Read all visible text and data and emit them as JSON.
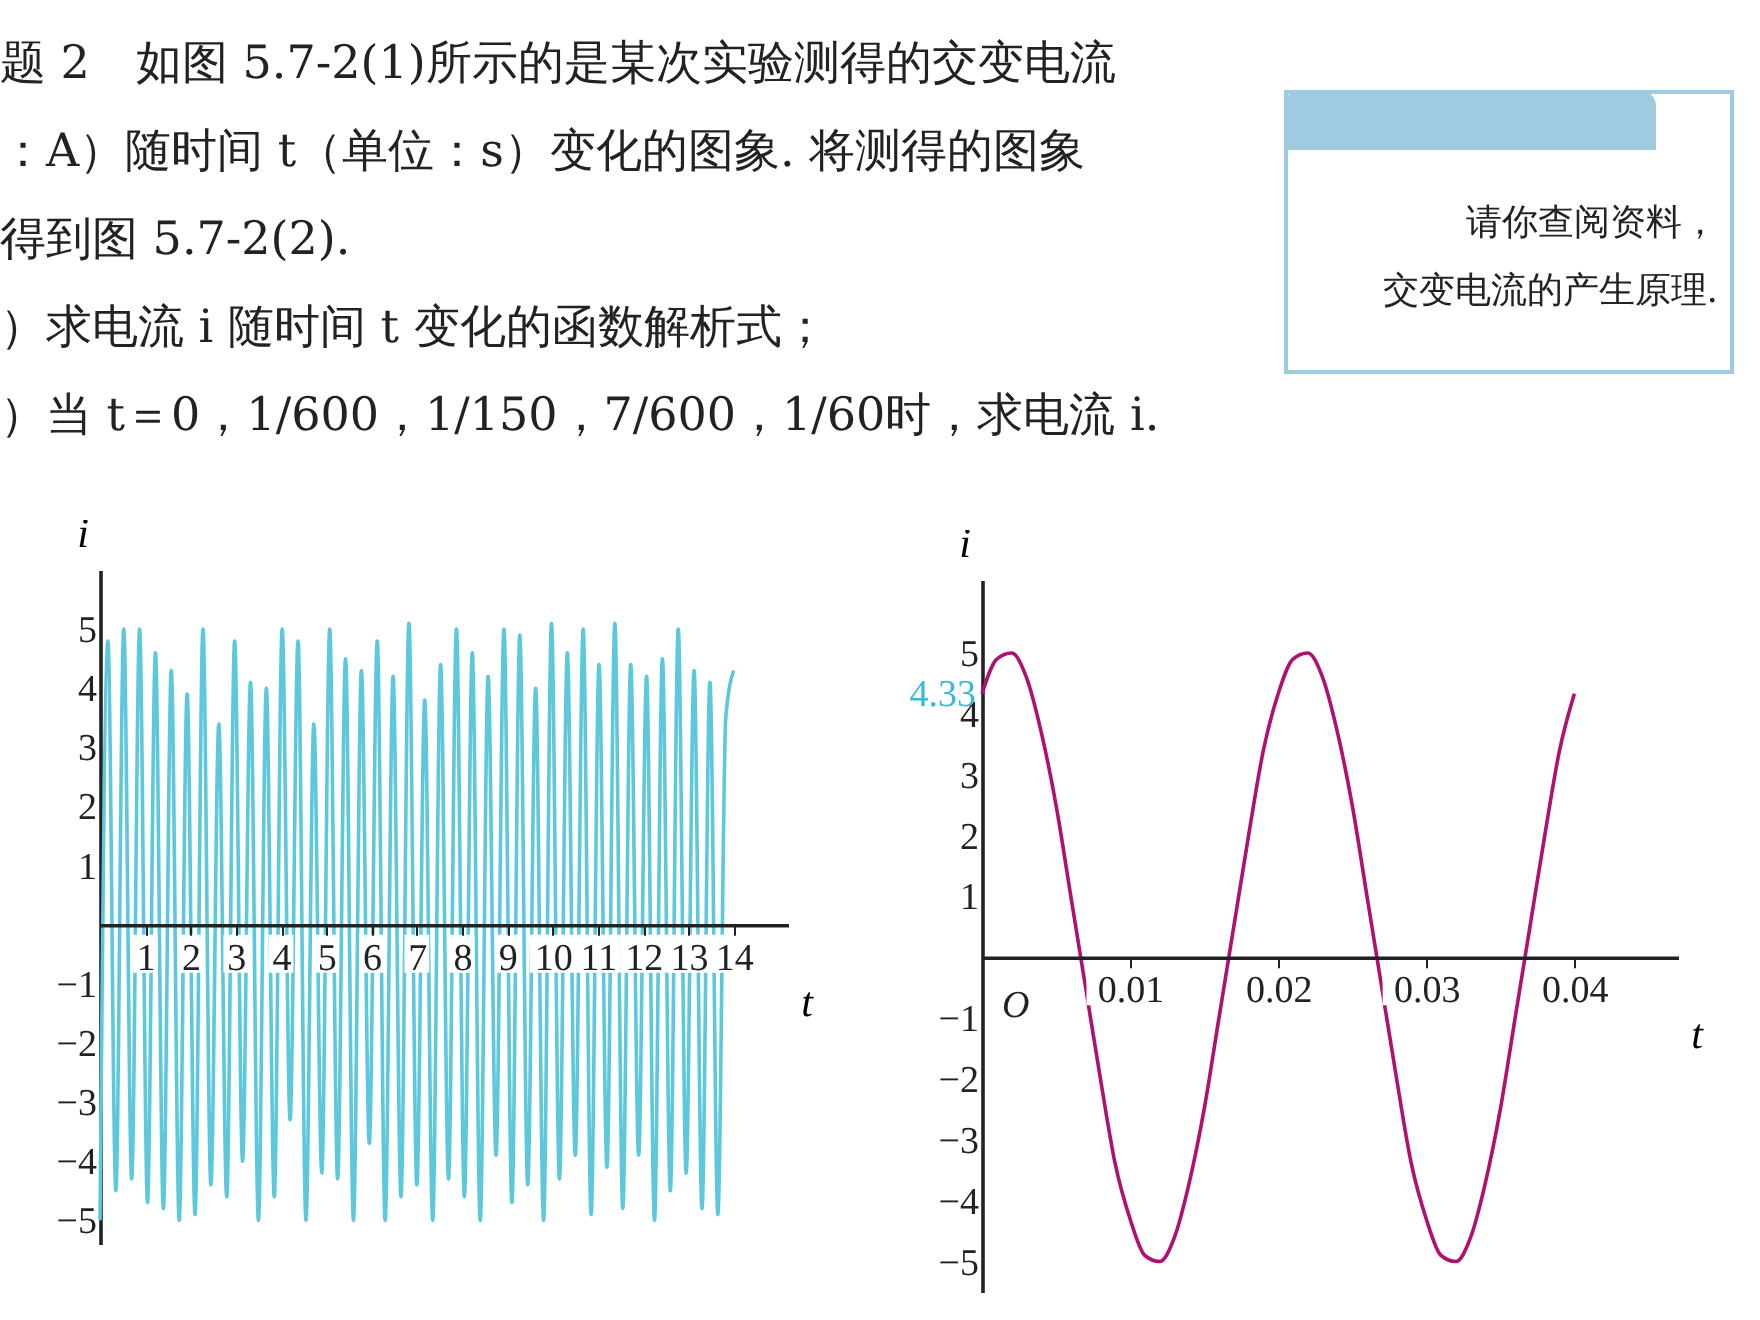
{
  "chart_data": [
    {
      "type": "other",
      "annotations": [
        "题 2　如图 5.7-2(1)所示的是某次实验测得的交变电流",
        "：A）随时间 t（单位：s）变化的图象. 将测得的图象",
        "得到图 5.7-2(2).",
        "）求电流 i 随时间 t 变化的函数解析式；",
        "）当 t＝0，1/600，1/150，7/600，1/60时，求电流 i."
      ]
    },
    {
      "type": "other",
      "annotations": [
        "请你查阅资料，",
        "交变电流的产生原理."
      ]
    },
    {
      "type": "line",
      "xlabel": "t",
      "ylabel": "i",
      "xlim": [
        0,
        15.2
      ],
      "ylim": [
        -5.4,
        6
      ],
      "xticks": [
        1,
        2,
        3,
        4,
        5,
        6,
        7,
        8,
        9,
        10,
        11,
        12,
        13,
        14
      ],
      "yticks": [
        -5,
        -4,
        -3,
        -2,
        -1,
        1,
        2,
        3,
        4,
        5
      ],
      "x": [
        0,
        0.175,
        0.35,
        0.525,
        0.7,
        0.875,
        1.05,
        1.225,
        1.4,
        1.575,
        1.75,
        1.925,
        2.1,
        2.275,
        2.45,
        2.625,
        2.8,
        2.975,
        3.15,
        3.325,
        3.5,
        3.675,
        3.85,
        4.025,
        4.2,
        4.375,
        4.55,
        4.725,
        4.9,
        5.075,
        5.25,
        5.425,
        5.6,
        5.775,
        5.95,
        6.125,
        6.3,
        6.475,
        6.65,
        6.825,
        7,
        7.175,
        7.35,
        7.525,
        7.7,
        7.875,
        8.05,
        8.225,
        8.4,
        8.575,
        8.75,
        8.925,
        9.1,
        9.275,
        9.45,
        9.625,
        9.8,
        9.975,
        10.15,
        10.325,
        10.5,
        10.675,
        10.85,
        11.025,
        11.2,
        11.375,
        11.55,
        11.725,
        11.9,
        12.075,
        12.25,
        12.425,
        12.6,
        12.775,
        12.95,
        13.125,
        13.3,
        13.475,
        13.65,
        13.825,
        14
      ],
      "series": [
        {
          "color": "#5bc8dc",
          "values": [
            -5,
            4.8,
            -4.5,
            5,
            -4.3,
            5,
            -4.7,
            4.6,
            -4.8,
            4.3,
            -5,
            3.9,
            -4.9,
            5,
            -4.4,
            3.4,
            -4.6,
            4.8,
            -4,
            4.1,
            -5,
            4,
            -4.6,
            5,
            -3.3,
            4.8,
            -5,
            3.4,
            -4.2,
            5,
            -4.3,
            4.5,
            -5,
            4.3,
            -3.7,
            4.8,
            -5,
            4.2,
            -4.6,
            5.1,
            -4.4,
            3.8,
            -5,
            4.4,
            -4.3,
            5,
            -4.6,
            4.6,
            -5,
            4.2,
            -3.9,
            5,
            -4.7,
            4.9,
            -4.4,
            4,
            -5,
            5.1,
            -4.3,
            4.6,
            -3.9,
            5,
            -4.9,
            4.4,
            -4.1,
            5.1,
            -4.8,
            4.4,
            -3.9,
            4.2,
            -5,
            4.5,
            -4.5,
            5,
            -4.2,
            4.3,
            -4.8,
            4.1,
            -4.9,
            3.5,
            4.3
          ]
        }
      ]
    },
    {
      "type": "line",
      "xlabel": "t",
      "ylabel": "i",
      "xlim": [
        0,
        0.047
      ],
      "ylim": [
        -5.5,
        6.2
      ],
      "xticks": [
        0.01,
        0.02,
        0.03,
        0.04
      ],
      "yticks": [
        -5,
        -4,
        -3,
        -2,
        -1,
        1,
        2,
        3,
        4,
        5
      ],
      "annotations": [
        {
          "text": "4.33",
          "x": 0,
          "y": 4.33
        },
        "O"
      ],
      "x": [
        0,
        0.001,
        0.002,
        0.003,
        0.004,
        0.005,
        0.006,
        0.007,
        0.008,
        0.009,
        0.01,
        0.011,
        0.012,
        0.013,
        0.014,
        0.015,
        0.016,
        0.017,
        0.018,
        0.019,
        0.02,
        0.021,
        0.022,
        0.023,
        0.024,
        0.025,
        0.026,
        0.027,
        0.028,
        0.029,
        0.03,
        0.031,
        0.032,
        0.033,
        0.034,
        0.035,
        0.036,
        0.037,
        0.038,
        0.039,
        0.04
      ],
      "series": [
        {
          "color": "#b0106e",
          "values": [
            4.33,
            4.9,
            5,
            4.6,
            3.7,
            2.5,
            1,
            -0.5,
            -2,
            -3.4,
            -4.3,
            -4.9,
            -5,
            -4.6,
            -3.7,
            -2.5,
            -1,
            0.5,
            2,
            3.4,
            4.33,
            4.9,
            5,
            4.6,
            3.7,
            2.5,
            1,
            -0.5,
            -2,
            -3.4,
            -4.3,
            -4.9,
            -5,
            -4.6,
            -3.7,
            -2.5,
            -1,
            0.5,
            2,
            3.4,
            4.33
          ]
        }
      ]
    }
  ]
}
